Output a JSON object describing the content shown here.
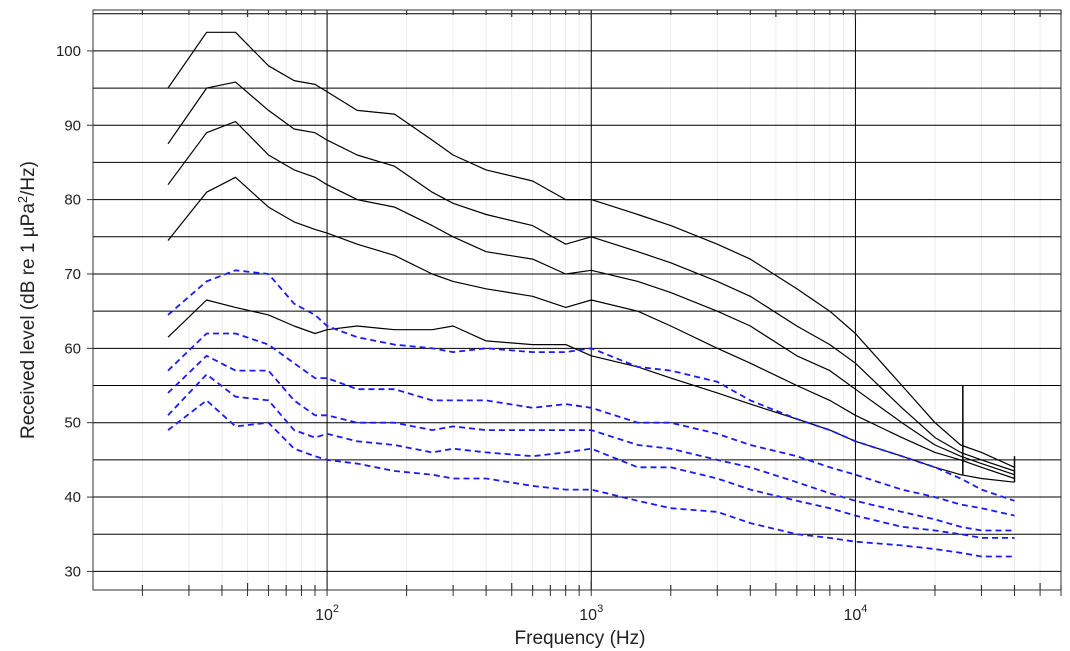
{
  "chart_data": {
    "type": "line",
    "xlabel": "Frequency (Hz)",
    "ylabel_parts": [
      "Received level (dB re 1 µPa",
      "2",
      "/Hz)"
    ],
    "x_scale": "log",
    "xlim": [
      13,
      60000
    ],
    "ylim": [
      27.5,
      105.5
    ],
    "x_ticks": [
      {
        "value": 100,
        "base": "10",
        "exp": "2"
      },
      {
        "value": 1000,
        "base": "10",
        "exp": "3"
      },
      {
        "value": 10000,
        "base": "10",
        "exp": "4"
      }
    ],
    "y_ticks": [
      "30",
      "40",
      "50",
      "60",
      "70",
      "80",
      "90",
      "100"
    ],
    "grid": true,
    "colors": {
      "solid": "#000000",
      "dashed": "#1a1aff"
    },
    "series": [
      {
        "style": "solid",
        "color": "#000000",
        "x": [
          25,
          35,
          45,
          60,
          75,
          90,
          100,
          130,
          180,
          250,
          300,
          400,
          600,
          800,
          1000,
          1500,
          2000,
          3000,
          4000,
          6000,
          8000,
          10000,
          15000,
          20000,
          25000,
          30000,
          40000
        ],
        "y": [
          95,
          102.5,
          102.5,
          98,
          96,
          95.5,
          94.5,
          92,
          91.5,
          88,
          86,
          84,
          82.5,
          80,
          80,
          78,
          76.5,
          74,
          72,
          68,
          65,
          62,
          55,
          50,
          47,
          46,
          44
        ]
      },
      {
        "style": "solid",
        "color": "#000000",
        "x": [
          25,
          35,
          45,
          60,
          75,
          90,
          100,
          130,
          180,
          250,
          300,
          400,
          600,
          800,
          1000,
          1500,
          2000,
          3000,
          4000,
          6000,
          8000,
          10000,
          15000,
          20000,
          25000,
          30000,
          40000
        ],
        "y": [
          87.5,
          95,
          95.8,
          92,
          89.5,
          89,
          88,
          86,
          84.5,
          81,
          79.5,
          78,
          76.5,
          74,
          75,
          73,
          71.5,
          69,
          67,
          63,
          60.5,
          58,
          52,
          48,
          46,
          45,
          43.5
        ]
      },
      {
        "style": "solid",
        "color": "#000000",
        "x": [
          25,
          35,
          45,
          60,
          75,
          90,
          100,
          130,
          180,
          250,
          300,
          400,
          600,
          800,
          1000,
          1500,
          2000,
          3000,
          4000,
          6000,
          8000,
          10000,
          15000,
          20000,
          25000,
          30000,
          40000
        ],
        "y": [
          82,
          89,
          90.5,
          86,
          84,
          83,
          82,
          80,
          79,
          76.5,
          75,
          73,
          72,
          70,
          70.5,
          69,
          67.5,
          65,
          63,
          59,
          57,
          54.5,
          50,
          47,
          45.5,
          44.5,
          43
        ]
      },
      {
        "style": "solid",
        "color": "#000000",
        "x": [
          25,
          35,
          45,
          60,
          75,
          90,
          100,
          130,
          180,
          250,
          300,
          400,
          600,
          800,
          1000,
          1500,
          2000,
          3000,
          4000,
          6000,
          8000,
          10000,
          15000,
          20000,
          25000,
          30000,
          40000
        ],
        "y": [
          74.5,
          81,
          83,
          79,
          77,
          76,
          75.5,
          74,
          72.5,
          70,
          69,
          68,
          67,
          65.5,
          66.5,
          65,
          63,
          60,
          58,
          55,
          53,
          51,
          48,
          46,
          45,
          44,
          42.5
        ]
      },
      {
        "style": "solid",
        "color": "#000000",
        "x": [
          25,
          35,
          45,
          60,
          75,
          90,
          100,
          130,
          180,
          250,
          300,
          400,
          600,
          800,
          1000,
          1500,
          2000,
          3000,
          4000,
          6000,
          8000,
          10000,
          15000,
          20000,
          25000,
          30000,
          40000
        ],
        "y": [
          61.5,
          66.5,
          65.5,
          64.5,
          63,
          62,
          62.5,
          63,
          62.5,
          62.5,
          63,
          61,
          60.5,
          60.5,
          59,
          57.5,
          56,
          54,
          52.5,
          50.5,
          49,
          47.5,
          45.5,
          44,
          43,
          42.5,
          42
        ]
      },
      {
        "style": "dashed",
        "color": "#1a1aff",
        "x": [
          25,
          35,
          45,
          60,
          75,
          90,
          100,
          130,
          180,
          250,
          300,
          400,
          600,
          800,
          1000,
          1500,
          2000,
          3000,
          4000,
          6000,
          8000,
          10000,
          15000,
          20000,
          25000,
          30000,
          40000
        ],
        "y": [
          64.5,
          69,
          70.5,
          70,
          66,
          64.5,
          63,
          61.5,
          60.5,
          60,
          59.5,
          60,
          59.5,
          59.5,
          60,
          57.5,
          57,
          55.5,
          53,
          50.5,
          49,
          47.5,
          45.5,
          44,
          42.5,
          41,
          39.5
        ]
      },
      {
        "style": "dashed",
        "color": "#1a1aff",
        "x": [
          25,
          35,
          45,
          60,
          75,
          90,
          100,
          130,
          180,
          250,
          300,
          400,
          600,
          800,
          1000,
          1500,
          2000,
          3000,
          4000,
          6000,
          8000,
          10000,
          15000,
          20000,
          25000,
          30000,
          40000
        ],
        "y": [
          57,
          62,
          62,
          60.5,
          58,
          56,
          56,
          54.5,
          54.5,
          53,
          53,
          53,
          52,
          52.5,
          52,
          50,
          50,
          48.5,
          47,
          45.5,
          44,
          43,
          41,
          40,
          39,
          38.5,
          37.5
        ]
      },
      {
        "style": "dashed",
        "color": "#1a1aff",
        "x": [
          25,
          35,
          45,
          60,
          75,
          90,
          100,
          130,
          180,
          250,
          300,
          400,
          600,
          800,
          1000,
          1500,
          2000,
          3000,
          4000,
          6000,
          8000,
          10000,
          15000,
          20000,
          25000,
          30000,
          40000
        ],
        "y": [
          54,
          59,
          57,
          57,
          53,
          51,
          51,
          50,
          50,
          49,
          49.5,
          49,
          49,
          49,
          49,
          47,
          46.5,
          45,
          44,
          42,
          40.5,
          39.5,
          38,
          37,
          36,
          35.5,
          35.5
        ]
      },
      {
        "style": "dashed",
        "color": "#1a1aff",
        "x": [
          25,
          35,
          45,
          60,
          75,
          90,
          100,
          130,
          180,
          250,
          300,
          400,
          600,
          800,
          1000,
          1500,
          2000,
          3000,
          4000,
          6000,
          8000,
          10000,
          15000,
          20000,
          25000,
          30000,
          40000
        ],
        "y": [
          51,
          56.5,
          53.5,
          53,
          49,
          48,
          48.5,
          47.5,
          47,
          46,
          46.5,
          46,
          45.5,
          46,
          46.5,
          44,
          44,
          42.5,
          41,
          39.5,
          38.5,
          37.5,
          36,
          35.5,
          35,
          34.5,
          34.5
        ]
      },
      {
        "style": "dashed",
        "color": "#1a1aff",
        "x": [
          25,
          35,
          45,
          60,
          75,
          90,
          100,
          130,
          180,
          250,
          300,
          400,
          600,
          800,
          1000,
          1500,
          2000,
          3000,
          4000,
          6000,
          8000,
          10000,
          15000,
          20000,
          25000,
          30000,
          40000
        ],
        "y": [
          49,
          53,
          49.5,
          50,
          46.5,
          45.5,
          45,
          44.5,
          43.5,
          43,
          42.5,
          42.5,
          41.5,
          41,
          41,
          39.5,
          38.5,
          38,
          36.5,
          35,
          34.5,
          34,
          33.5,
          33,
          32.5,
          32,
          32
        ]
      }
    ],
    "spike": {
      "x": 25500,
      "y": [
        43,
        55
      ]
    },
    "spike_small": {
      "x": 40000,
      "y": [
        42,
        45.5
      ]
    }
  }
}
